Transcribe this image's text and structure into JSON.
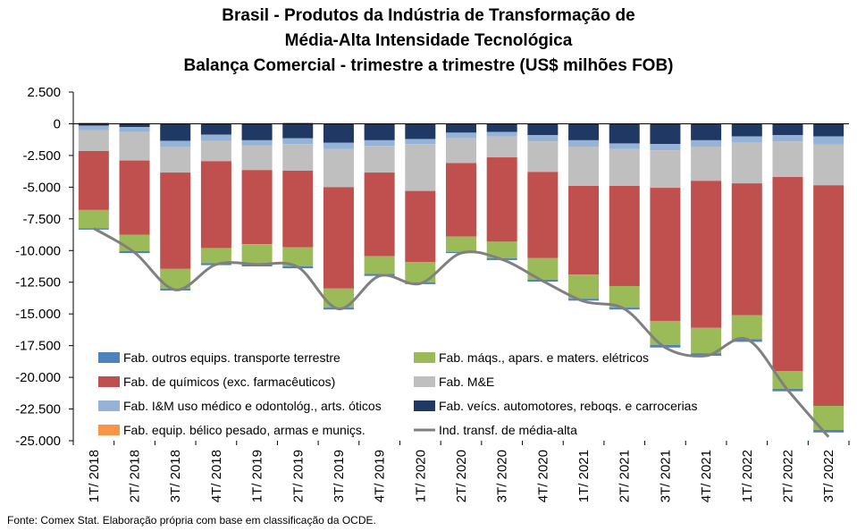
{
  "title_lines": [
    "Brasil - Produtos da Indústria de Transformação de",
    "Média-Alta Intensidade Tecnológica",
    "Balança Comercial - trimestre a trimestre (US$ milhões FOB)"
  ],
  "footnote": "Fonte:  Comex Stat. Elaboração própria com base em classificação da OCDE.",
  "chart_data": {
    "type": "bar",
    "stacked": true,
    "categories": [
      "1T/ 2018",
      "2T/ 2018",
      "3T/ 2018",
      "4T/ 2018",
      "1T/ 2019",
      "2T/ 2019",
      "3T/ 2019",
      "4T/ 2019",
      "1T/ 2020",
      "2T/ 2020",
      "3T/ 2020",
      "4T/ 2020",
      "1T/ 2021",
      "2T/ 2021",
      "3T/ 2021",
      "4T/ 2021",
      "1T/ 2022",
      "2T/ 2022",
      "3T/ 2022"
    ],
    "ylim": [
      -25000,
      2500
    ],
    "yticks": [
      2500,
      0,
      -2500,
      -5000,
      -7500,
      -10000,
      -12500,
      -15000,
      -17500,
      -20000,
      -22500,
      -25000
    ],
    "ytick_labels": [
      "2.500",
      "0",
      "-2.500",
      "-5.000",
      "-7.500",
      "-10.000",
      "-12.500",
      "-15.000",
      "-17.500",
      "-20.000",
      "-22.500",
      "-25.000"
    ],
    "grid": false,
    "legend_position": "bottom-inside",
    "series": [
      {
        "name": "Fab. veícs. automotores, reboqs. e carrocerias",
        "color": "#1F3864",
        "values": [
          -150,
          -250,
          -1350,
          -850,
          -1300,
          -1150,
          -1500,
          -1300,
          -1200,
          -700,
          -650,
          -900,
          -1300,
          -1550,
          -1600,
          -1300,
          -1000,
          -900,
          -1000
        ]
      },
      {
        "name": "Fab. I&M uso médico e odontológ., arts. óticos",
        "color": "#95B3D7",
        "values": [
          -350,
          -400,
          -500,
          -500,
          -400,
          -450,
          -500,
          -450,
          -400,
          -450,
          -350,
          -500,
          -500,
          -450,
          -500,
          -500,
          -500,
          -500,
          -650
        ]
      },
      {
        "name": "Fab. M&E",
        "color": "#BFBFBF",
        "values": [
          -1650,
          -2250,
          -2000,
          -1600,
          -1950,
          -2100,
          -3000,
          -2100,
          -3700,
          -1950,
          -1650,
          -2400,
          -3100,
          -2900,
          -2950,
          -2700,
          -3200,
          -2800,
          -3200
        ]
      },
      {
        "name": "Fab. de químicos (exc. farmacêuticos)",
        "color": "#C0504D",
        "values": [
          -4650,
          -5850,
          -7600,
          -6850,
          -5850,
          -6050,
          -8000,
          -6600,
          -5600,
          -5800,
          -6650,
          -6800,
          -7000,
          -7900,
          -10500,
          -11600,
          -10400,
          -15300,
          -17400
        ]
      },
      {
        "name": "Fab. máqs., apars. e maters. elétricos",
        "color": "#9BBB59",
        "values": [
          -1450,
          -1300,
          -1550,
          -1200,
          -1600,
          -1500,
          -1500,
          -1400,
          -1600,
          -1200,
          -1300,
          -1700,
          -1900,
          -1700,
          -1900,
          -2000,
          -1900,
          -1400,
          -1900
        ]
      },
      {
        "name": "Fab. outros equips. transporte terrestre",
        "color": "#4F81BD",
        "values": [
          -100,
          -150,
          -150,
          -150,
          -150,
          -150,
          -150,
          -150,
          -150,
          -100,
          -150,
          -150,
          -150,
          -150,
          -200,
          -200,
          -200,
          -200,
          -200
        ]
      },
      {
        "name": "Fab. equip. bélico pesado, armas e muniçs.",
        "color": "#F79646",
        "values": [
          100,
          60,
          30,
          30,
          30,
          100,
          30,
          30,
          30,
          30,
          30,
          30,
          30,
          30,
          30,
          30,
          30,
          30,
          30
        ]
      }
    ],
    "line": {
      "name": "Ind. transf. de média-alta",
      "color": "#808080",
      "values": [
        -8250,
        -10150,
        -13100,
        -11100,
        -11100,
        -11300,
        -14600,
        -12000,
        -12600,
        -10200,
        -10700,
        -12400,
        -14000,
        -14600,
        -17650,
        -18300,
        -17000,
        -21000,
        -24700
      ]
    },
    "legend_order": [
      "Fab. outros equips. transporte terrestre",
      "Fab. máqs., apars. e maters. elétricos",
      "Fab. de químicos (exc. farmacêuticos)",
      "Fab. M&E",
      "Fab. I&M uso médico e odontológ., arts. óticos",
      "Fab. veícs. automotores, reboqs. e carrocerias",
      "Fab. equip. bélico pesado, armas e muniçs.",
      "Ind. transf. de média-alta"
    ]
  }
}
